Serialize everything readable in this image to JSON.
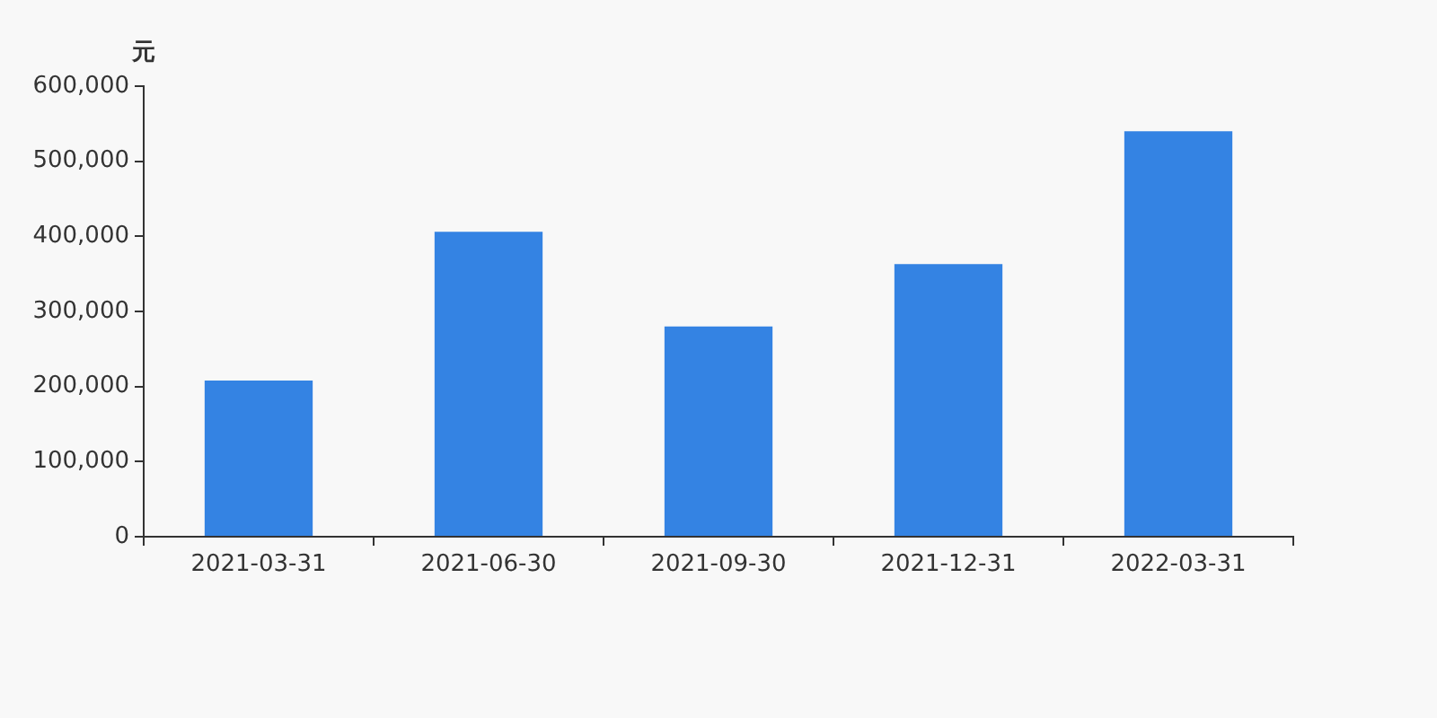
{
  "chart_data": {
    "type": "bar",
    "ylabel": "元",
    "categories": [
      "2021-03-31",
      "2021-06-30",
      "2021-09-30",
      "2021-12-31",
      "2022-03-31"
    ],
    "values": [
      208000,
      406000,
      280000,
      363000,
      540000
    ],
    "color": "#3483e3",
    "ylim": [
      0,
      600000
    ],
    "yticks": [
      {
        "value": 0,
        "label": "0"
      },
      {
        "value": 100000,
        "label": "100,000"
      },
      {
        "value": 200000,
        "label": "200,000"
      },
      {
        "value": 300000,
        "label": "300,000"
      },
      {
        "value": 400000,
        "label": "400,000"
      },
      {
        "value": 500000,
        "label": "500,000"
      },
      {
        "value": 600000,
        "label": "600,000"
      }
    ],
    "grid": false
  }
}
